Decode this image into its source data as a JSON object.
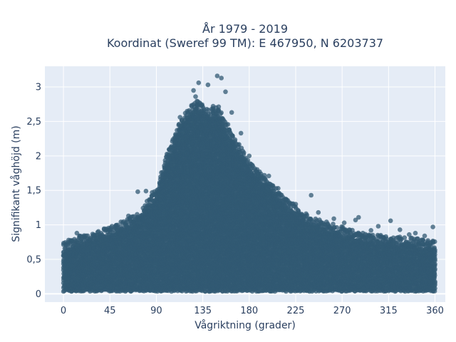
{
  "chart_data": {
    "type": "scatter",
    "title_line1": "År 1979 - 2019",
    "title_line2": "Koordinat (Sweref 99 TM): E 467950, N 6203737",
    "xlabel": "Vågriktning (grader)",
    "ylabel": "Signifikant våghöjd (m)",
    "xlim": [
      -18,
      370
    ],
    "ylim": [
      -0.12,
      3.3
    ],
    "x_ticks": [
      0,
      45,
      90,
      135,
      180,
      225,
      270,
      315,
      360
    ],
    "x_tick_labels": [
      "0",
      "45",
      "90",
      "135",
      "180",
      "225",
      "270",
      "315",
      "360"
    ],
    "y_ticks": [
      0,
      0.5,
      1,
      1.5,
      2,
      2.5,
      3
    ],
    "y_tick_labels": [
      "0",
      "0,5",
      "1",
      "1,5",
      "2",
      "2,5",
      "3"
    ],
    "grid": true,
    "marker_color": "#325a73",
    "plot_bg": "#e5ecf6",
    "envelope": {
      "direction": [
        0,
        15,
        30,
        45,
        60,
        75,
        90,
        100,
        110,
        120,
        130,
        140,
        150,
        160,
        170,
        180,
        195,
        210,
        225,
        240,
        255,
        270,
        285,
        300,
        315,
        330,
        345,
        360
      ],
      "upper_height": [
        0.62,
        0.72,
        0.78,
        0.85,
        0.95,
        1.1,
        1.4,
        1.9,
        2.3,
        2.55,
        2.7,
        2.55,
        2.6,
        2.3,
        2.05,
        1.8,
        1.6,
        1.35,
        1.15,
        1.0,
        0.92,
        0.85,
        0.8,
        0.75,
        0.72,
        0.7,
        0.68,
        0.65
      ],
      "lower_height": 0.05
    },
    "outliers": [
      {
        "x": 126,
        "y": 2.95
      },
      {
        "x": 131,
        "y": 3.06
      },
      {
        "x": 140,
        "y": 3.03
      },
      {
        "x": 149,
        "y": 3.16
      },
      {
        "x": 153,
        "y": 3.13
      },
      {
        "x": 157,
        "y": 2.93
      },
      {
        "x": 128,
        "y": 2.86
      },
      {
        "x": 145,
        "y": 2.72
      },
      {
        "x": 163,
        "y": 2.63
      },
      {
        "x": 172,
        "y": 2.33
      },
      {
        "x": 180,
        "y": 2.0
      },
      {
        "x": 188,
        "y": 1.76
      },
      {
        "x": 199,
        "y": 1.71
      },
      {
        "x": 208,
        "y": 1.53
      },
      {
        "x": 215,
        "y": 1.37
      },
      {
        "x": 225,
        "y": 1.3
      },
      {
        "x": 240,
        "y": 1.43
      },
      {
        "x": 247,
        "y": 1.18
      },
      {
        "x": 262,
        "y": 1.09
      },
      {
        "x": 272,
        "y": 1.03
      },
      {
        "x": 283,
        "y": 1.07
      },
      {
        "x": 286,
        "y": 1.11
      },
      {
        "x": 298,
        "y": 0.92
      },
      {
        "x": 317,
        "y": 1.06
      },
      {
        "x": 326,
        "y": 0.93
      },
      {
        "x": 341,
        "y": 0.88
      },
      {
        "x": 358,
        "y": 0.97
      },
      {
        "x": 72,
        "y": 1.48
      },
      {
        "x": 80,
        "y": 1.49
      },
      {
        "x": 86,
        "y": 1.47
      },
      {
        "x": 96,
        "y": 1.72
      },
      {
        "x": 103,
        "y": 2.08
      },
      {
        "x": 108,
        "y": 2.2
      },
      {
        "x": 113,
        "y": 2.56
      },
      {
        "x": 118,
        "y": 2.62
      },
      {
        "x": 39,
        "y": 0.83
      },
      {
        "x": 47,
        "y": 0.98
      },
      {
        "x": 63,
        "y": 1.13
      },
      {
        "x": 13,
        "y": 0.88
      },
      {
        "x": 5,
        "y": 0.78
      },
      {
        "x": 30,
        "y": 0.81
      },
      {
        "x": 52,
        "y": 0.92
      },
      {
        "x": 305,
        "y": 0.98
      },
      {
        "x": 335,
        "y": 0.86
      },
      {
        "x": 350,
        "y": 0.84
      }
    ]
  }
}
